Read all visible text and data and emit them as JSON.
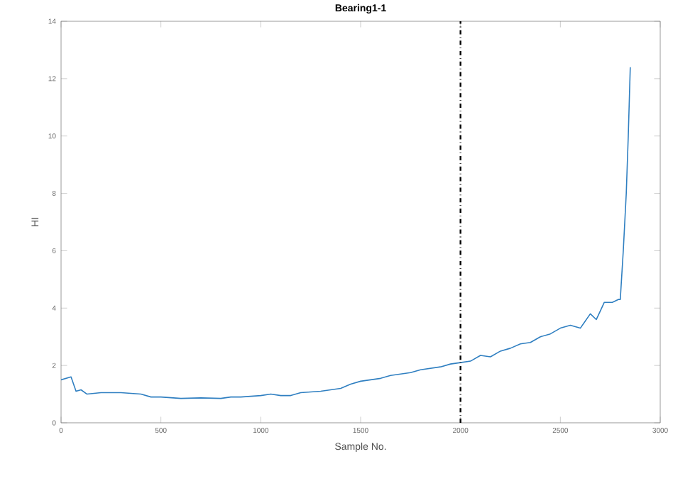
{
  "chart_data": {
    "type": "line",
    "title": "Bearing1-1",
    "xlabel": "Sample No.",
    "ylabel": "HI",
    "xlim": [
      0,
      3000
    ],
    "ylim": [
      0,
      14
    ],
    "xticks": [
      0,
      500,
      1000,
      1500,
      2000,
      2500,
      3000
    ],
    "yticks": [
      0,
      2,
      4,
      6,
      8,
      10,
      12,
      14
    ],
    "grid": false,
    "ref_lines": [
      {
        "axis": "x",
        "value": 2000,
        "color": "#000000",
        "line_style": "dashdot"
      }
    ],
    "series": [
      {
        "color": "#2f7fc1",
        "x": [
          0,
          50,
          75,
          100,
          130,
          200,
          300,
          400,
          450,
          500,
          600,
          700,
          800,
          850,
          900,
          1000,
          1050,
          1100,
          1150,
          1200,
          1300,
          1400,
          1450,
          1500,
          1600,
          1650,
          1700,
          1750,
          1800,
          1900,
          1950,
          2000,
          2050,
          2100,
          2150,
          2200,
          2250,
          2300,
          2350,
          2400,
          2450,
          2500,
          2550,
          2600,
          2620,
          2650,
          2680,
          2700,
          2720,
          2760,
          2790,
          2800,
          2815,
          2830,
          2840,
          2850
        ],
        "values": [
          1.5,
          1.6,
          1.1,
          1.15,
          1.0,
          1.05,
          1.05,
          1.0,
          0.9,
          0.9,
          0.85,
          0.87,
          0.85,
          0.9,
          0.9,
          0.95,
          1.0,
          0.95,
          0.95,
          1.05,
          1.1,
          1.2,
          1.35,
          1.45,
          1.55,
          1.65,
          1.7,
          1.75,
          1.85,
          1.95,
          2.05,
          2.1,
          2.15,
          2.35,
          2.3,
          2.5,
          2.6,
          2.75,
          2.8,
          3.0,
          3.1,
          3.3,
          3.4,
          3.3,
          3.5,
          3.8,
          3.6,
          3.9,
          4.2,
          4.2,
          4.3,
          4.3,
          6,
          8,
          10,
          12.4
        ]
      }
    ]
  }
}
